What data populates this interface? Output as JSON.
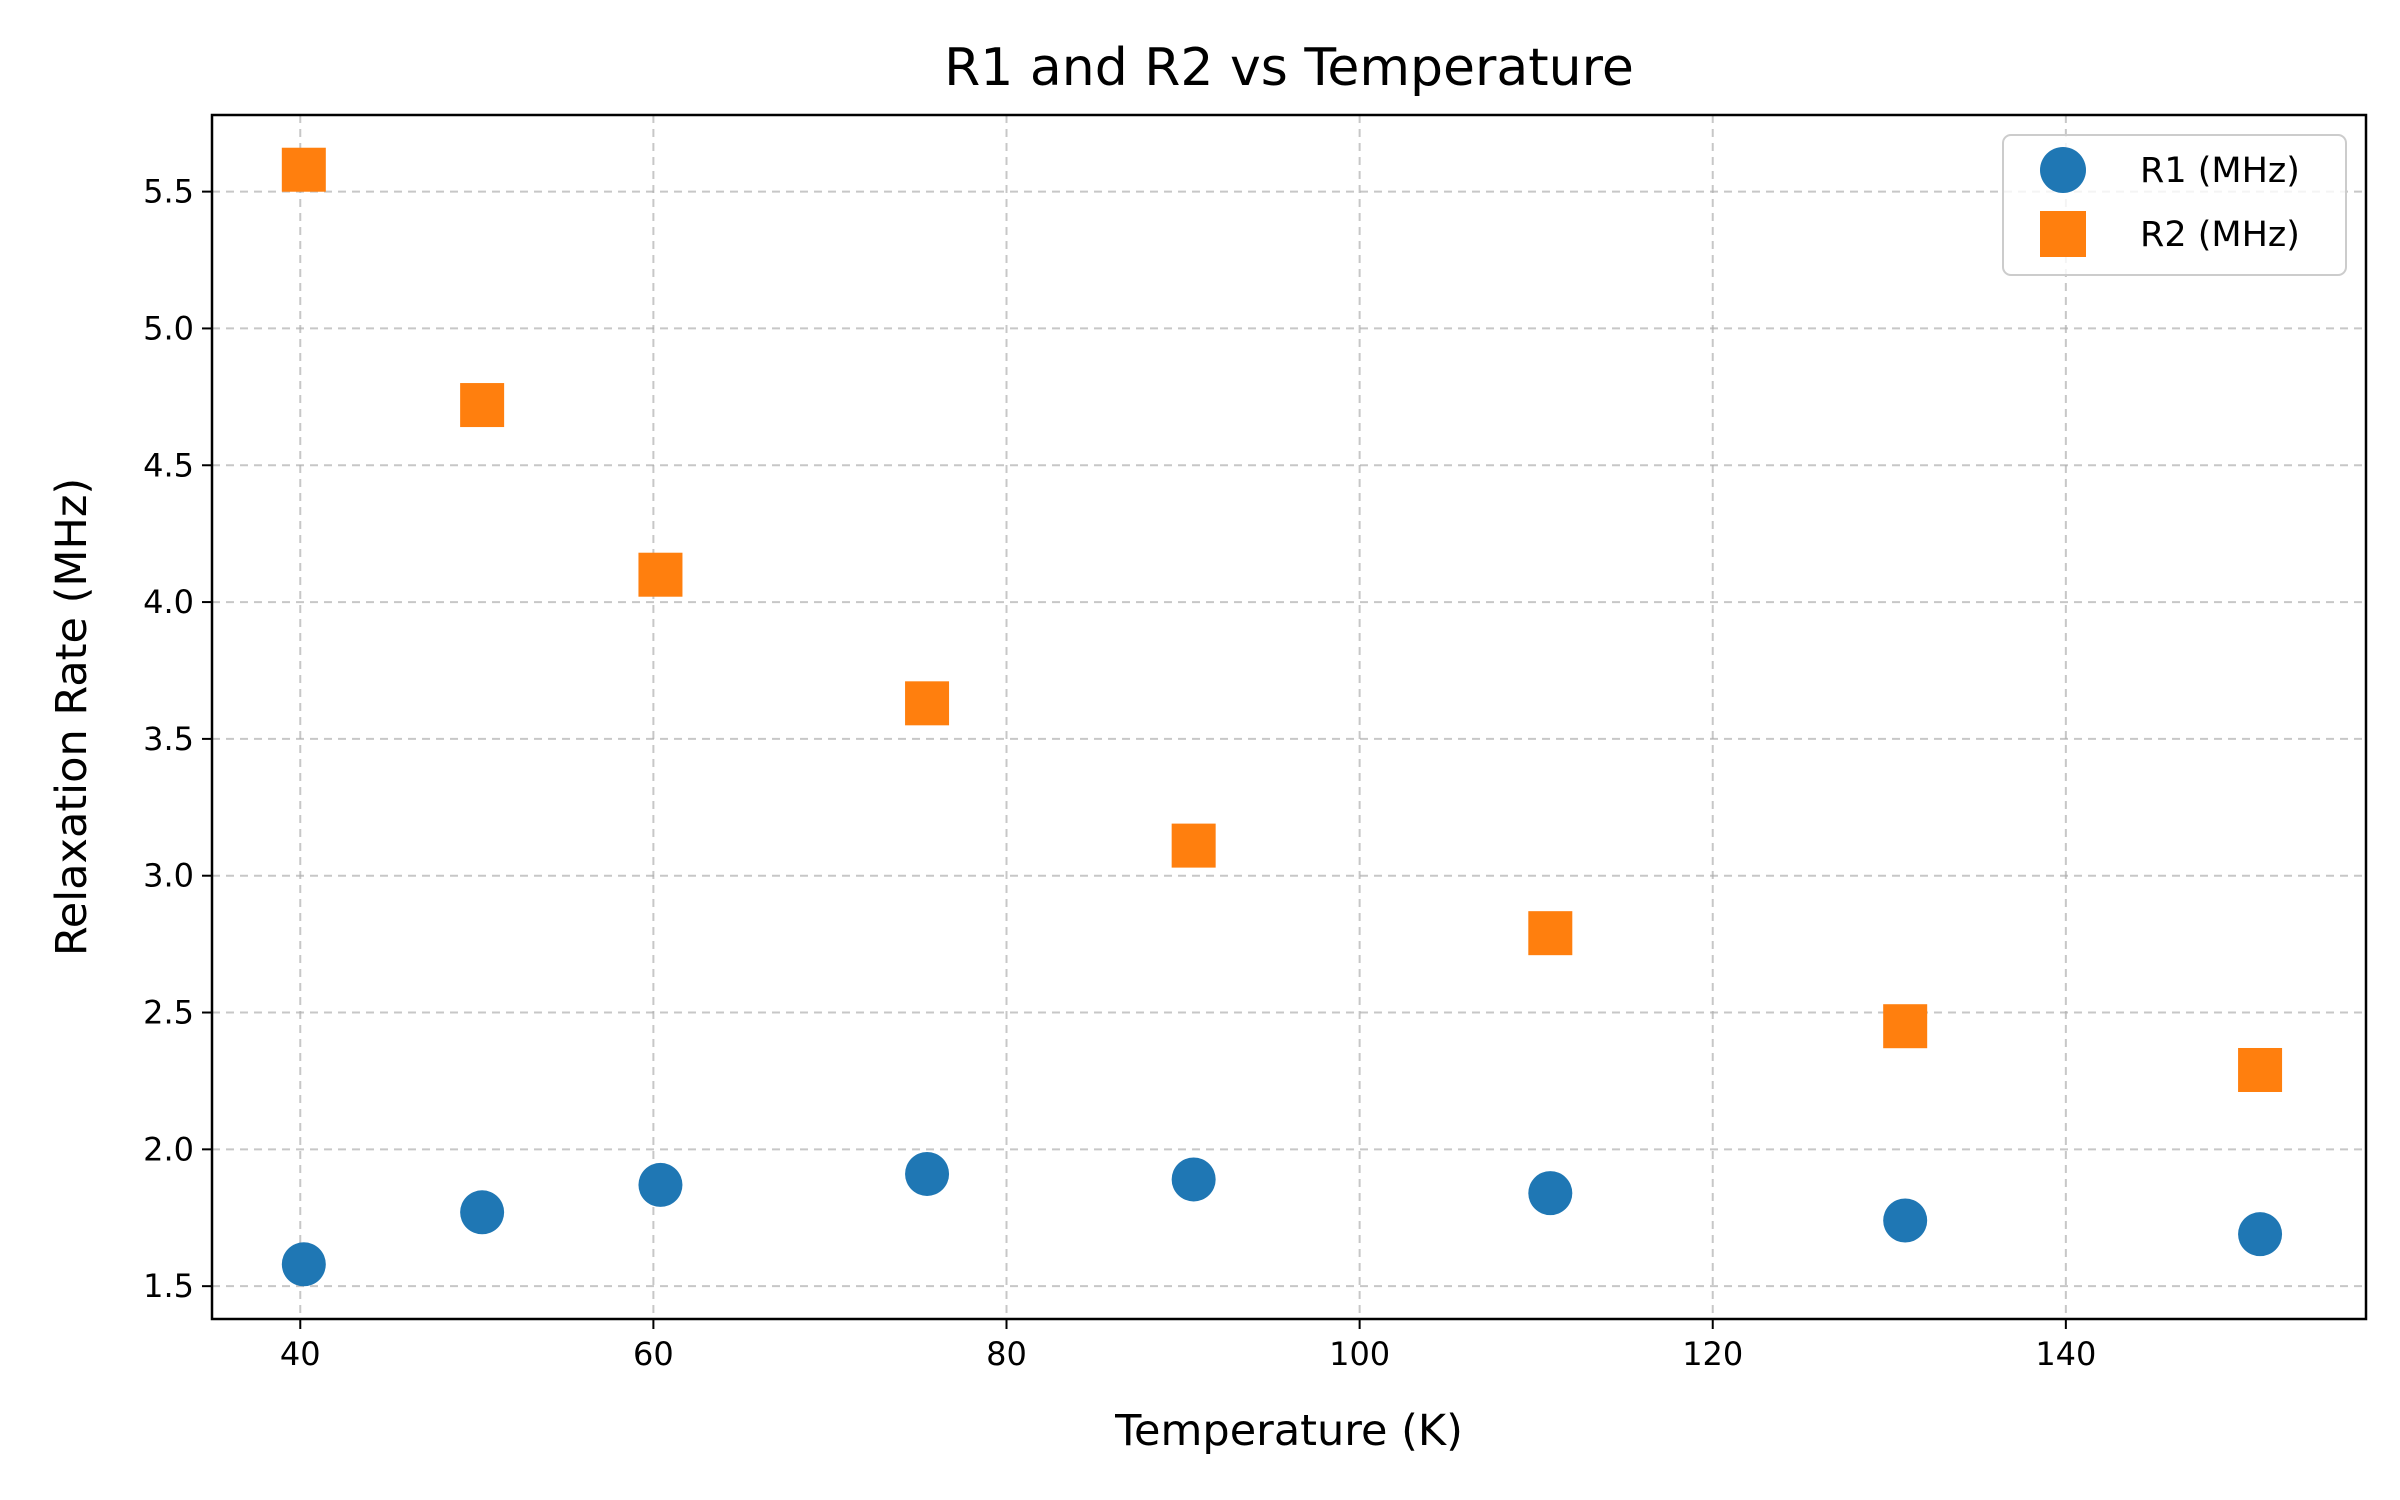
{
  "chart_data": {
    "type": "scatter",
    "title": "R1 and R2 vs Temperature",
    "xlabel": "Temperature (K)",
    "ylabel": "Relaxation Rate (MHz)",
    "xlim": [
      35,
      157
    ],
    "ylim": [
      1.38,
      5.78
    ],
    "xticks": [
      40,
      60,
      80,
      100,
      120,
      140
    ],
    "yticks": [
      1.5,
      2.0,
      2.5,
      3.0,
      3.5,
      4.0,
      4.5,
      5.0,
      5.5
    ],
    "xtick_labels": [
      "40",
      "60",
      "80",
      "100",
      "120",
      "140"
    ],
    "ytick_labels": [
      "1.5",
      "2.0",
      "2.5",
      "3.0",
      "3.5",
      "4.0",
      "4.5",
      "5.0",
      "5.5"
    ],
    "grid": true,
    "legend_position": "top-right",
    "series": [
      {
        "name": "R1 (MHz)",
        "marker": "circle",
        "color": "#1f77b4",
        "x": [
          40.2,
          50.3,
          60.4,
          75.5,
          90.6,
          110.8,
          130.9,
          151.0
        ],
        "y": [
          1.58,
          1.77,
          1.87,
          1.91,
          1.89,
          1.84,
          1.74,
          1.69
        ]
      },
      {
        "name": "R2 (MHz)",
        "marker": "square",
        "color": "#ff7f0e",
        "x": [
          40.2,
          50.3,
          60.4,
          75.5,
          90.6,
          110.8,
          130.9,
          151.0
        ],
        "y": [
          5.58,
          4.72,
          4.1,
          3.63,
          3.11,
          2.79,
          2.45,
          2.29
        ]
      }
    ]
  }
}
